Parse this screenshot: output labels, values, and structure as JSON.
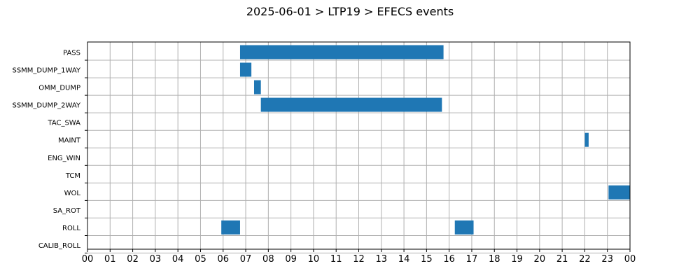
{
  "chart_data": {
    "type": "bar",
    "orientation": "horizontal-timeline",
    "title": "2025-06-01 > LTP19 > EFECS events",
    "x_unit": "hour of day",
    "xlim": [
      0,
      24
    ],
    "xtick_labels": [
      "00",
      "01",
      "02",
      "03",
      "04",
      "05",
      "06",
      "07",
      "08",
      "09",
      "10",
      "11",
      "12",
      "13",
      "14",
      "15",
      "16",
      "17",
      "18",
      "19",
      "20",
      "21",
      "22",
      "23",
      "00"
    ],
    "categories": [
      "PASS",
      "SSMM_DUMP_1WAY",
      "OMM_DUMP",
      "SSMM_DUMP_2WAY",
      "TAC_SWA",
      "MAINT",
      "ENG_WIN",
      "TCM",
      "WOL",
      "SA_ROT",
      "ROLL",
      "CALIB_ROLL"
    ],
    "events": [
      {
        "category": "PASS",
        "start": 6.75,
        "end": 15.75
      },
      {
        "category": "SSMM_DUMP_1WAY",
        "start": 6.75,
        "end": 7.25
      },
      {
        "category": "OMM_DUMP",
        "start": 7.37,
        "end": 7.67
      },
      {
        "category": "SSMM_DUMP_2WAY",
        "start": 7.67,
        "end": 15.68
      },
      {
        "category": "MAINT",
        "start": 22.0,
        "end": 22.17
      },
      {
        "category": "WOL",
        "start": 23.05,
        "end": 24.0
      },
      {
        "category": "ROLL",
        "start": 5.92,
        "end": 6.75
      },
      {
        "category": "ROLL",
        "start": 16.25,
        "end": 17.08
      }
    ],
    "grid": true,
    "legend": false,
    "colors": {
      "bar": "#1f77b4",
      "grid": "#b0b0b0",
      "axis": "#000000"
    }
  }
}
